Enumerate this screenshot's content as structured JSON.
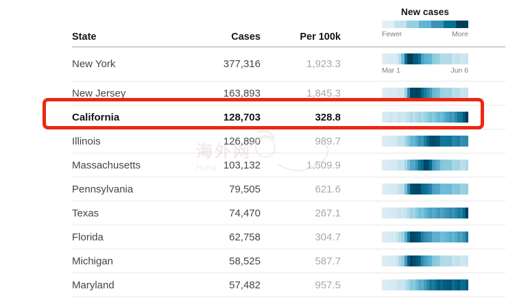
{
  "legend": {
    "title": "New cases",
    "fewer_label": "Fewer",
    "more_label": "More",
    "colors": [
      "#e4eff4",
      "#c3e2ee",
      "#96cfdf",
      "#5fb5d3",
      "#3c92b4",
      "#066f94",
      "#003f5c"
    ]
  },
  "table": {
    "columns": [
      "State",
      "Cases",
      "Per 100k"
    ],
    "date_start": "Mar 1",
    "date_end": "Jun 6"
  },
  "annotation": {
    "type": "highlight-box",
    "target": "California",
    "color": "#ee2711"
  },
  "watermark": {
    "line1": "海外网",
    "line2": "Hina"
  },
  "chart_data": {
    "type": "heatmap",
    "title": "New cases",
    "x_range": [
      "Mar 1",
      "Jun 6"
    ],
    "legend": {
      "labels": [
        "Fewer",
        "More"
      ],
      "position": "top-right"
    },
    "columns": [
      "State",
      "Cases",
      "Per 100k"
    ],
    "rows": [
      {
        "state": "New York",
        "cases": "377,316",
        "per_100k": "1,923.3",
        "highlighted": false,
        "trend": [
          0.04,
          0.04,
          0.05,
          0.05,
          0.06,
          0.08,
          0.2,
          0.5,
          0.85,
          1,
          1,
          0.95,
          0.9,
          0.8,
          0.65,
          0.55,
          0.5,
          0.45,
          0.4,
          0.35,
          0.3,
          0.28,
          0.25,
          0.22,
          0.2,
          0.18,
          0.17,
          0.16,
          0.15,
          0.14,
          0.13
        ]
      },
      {
        "state": "New Jersey",
        "cases": "163,893",
        "per_100k": "1,845.3",
        "highlighted": false,
        "trend": [
          0.04,
          0.04,
          0.05,
          0.05,
          0.06,
          0.07,
          0.09,
          0.15,
          0.35,
          0.7,
          0.95,
          1,
          1,
          0.95,
          0.9,
          0.8,
          0.7,
          0.6,
          0.52,
          0.46,
          0.4,
          0.36,
          0.32,
          0.28,
          0.26,
          0.24,
          0.22,
          0.2,
          0.18,
          0.16,
          0.15
        ]
      },
      {
        "state": "California",
        "cases": "128,703",
        "per_100k": "328.8",
        "highlighted": true,
        "trend": [
          0.07,
          0.07,
          0.08,
          0.09,
          0.1,
          0.11,
          0.12,
          0.14,
          0.16,
          0.18,
          0.2,
          0.22,
          0.25,
          0.27,
          0.3,
          0.32,
          0.35,
          0.38,
          0.4,
          0.43,
          0.46,
          0.5,
          0.54,
          0.58,
          0.62,
          0.66,
          0.72,
          0.78,
          0.85,
          0.93,
          1
        ]
      },
      {
        "state": "Illinois",
        "cases": "126,890",
        "per_100k": "989.7",
        "highlighted": false,
        "trend": [
          0.05,
          0.05,
          0.06,
          0.07,
          0.09,
          0.12,
          0.16,
          0.22,
          0.3,
          0.38,
          0.45,
          0.52,
          0.58,
          0.65,
          0.7,
          0.78,
          0.85,
          0.92,
          1,
          0.95,
          0.9,
          0.85,
          0.82,
          0.8,
          0.78,
          0.76,
          0.75,
          0.74,
          0.73,
          0.72,
          0.7
        ]
      },
      {
        "state": "Massachusetts",
        "cases": "103,132",
        "per_100k": "1,509.9",
        "highlighted": false,
        "trend": [
          0.05,
          0.05,
          0.06,
          0.07,
          0.08,
          0.1,
          0.14,
          0.2,
          0.3,
          0.42,
          0.52,
          0.6,
          0.68,
          0.78,
          0.9,
          1,
          0.95,
          0.82,
          0.68,
          0.58,
          0.5,
          0.44,
          0.4,
          0.36,
          0.33,
          0.3,
          0.28,
          0.26,
          0.24,
          0.22,
          0.25
        ]
      },
      {
        "state": "Pennsylvania",
        "cases": "79,505",
        "per_100k": "621.6",
        "highlighted": false,
        "trend": [
          0.04,
          0.05,
          0.05,
          0.06,
          0.08,
          0.1,
          0.15,
          0.25,
          0.45,
          0.7,
          0.9,
          1,
          0.98,
          0.95,
          0.9,
          0.85,
          0.78,
          0.7,
          0.64,
          0.58,
          0.54,
          0.5,
          0.47,
          0.45,
          0.43,
          0.41,
          0.4,
          0.38,
          0.36,
          0.35,
          0.33
        ]
      },
      {
        "state": "Texas",
        "cases": "74,470",
        "per_100k": "267.1",
        "highlighted": false,
        "trend": [
          0.05,
          0.05,
          0.06,
          0.07,
          0.08,
          0.1,
          0.12,
          0.15,
          0.18,
          0.22,
          0.27,
          0.32,
          0.37,
          0.42,
          0.46,
          0.5,
          0.53,
          0.56,
          0.58,
          0.6,
          0.62,
          0.63,
          0.65,
          0.66,
          0.68,
          0.7,
          0.72,
          0.75,
          0.8,
          0.88,
          1
        ]
      },
      {
        "state": "Florida",
        "cases": "62,758",
        "per_100k": "304.7",
        "highlighted": false,
        "trend": [
          0.05,
          0.05,
          0.06,
          0.07,
          0.09,
          0.13,
          0.2,
          0.35,
          0.55,
          0.78,
          0.95,
          1,
          0.95,
          0.88,
          0.8,
          0.72,
          0.65,
          0.6,
          0.56,
          0.53,
          0.5,
          0.49,
          0.48,
          0.49,
          0.51,
          0.53,
          0.56,
          0.6,
          0.64,
          0.7,
          0.78
        ]
      },
      {
        "state": "Michigan",
        "cases": "58,525",
        "per_100k": "587.7",
        "highlighted": false,
        "trend": [
          0.05,
          0.05,
          0.06,
          0.07,
          0.09,
          0.13,
          0.22,
          0.4,
          0.65,
          0.88,
          1,
          0.98,
          0.92,
          0.84,
          0.74,
          0.64,
          0.55,
          0.48,
          0.42,
          0.37,
          0.32,
          0.28,
          0.25,
          0.22,
          0.2,
          0.18,
          0.17,
          0.16,
          0.15,
          0.14,
          0.13
        ]
      },
      {
        "state": "Maryland",
        "cases": "57,482",
        "per_100k": "957.5",
        "highlighted": false,
        "trend": [
          0.05,
          0.05,
          0.06,
          0.07,
          0.08,
          0.1,
          0.13,
          0.17,
          0.22,
          0.28,
          0.34,
          0.4,
          0.46,
          0.52,
          0.58,
          0.64,
          0.7,
          0.76,
          0.8,
          0.84,
          0.87,
          0.9,
          0.92,
          0.9,
          0.88,
          0.87,
          0.88,
          0.9,
          0.88,
          0.86,
          0.9
        ]
      }
    ]
  }
}
